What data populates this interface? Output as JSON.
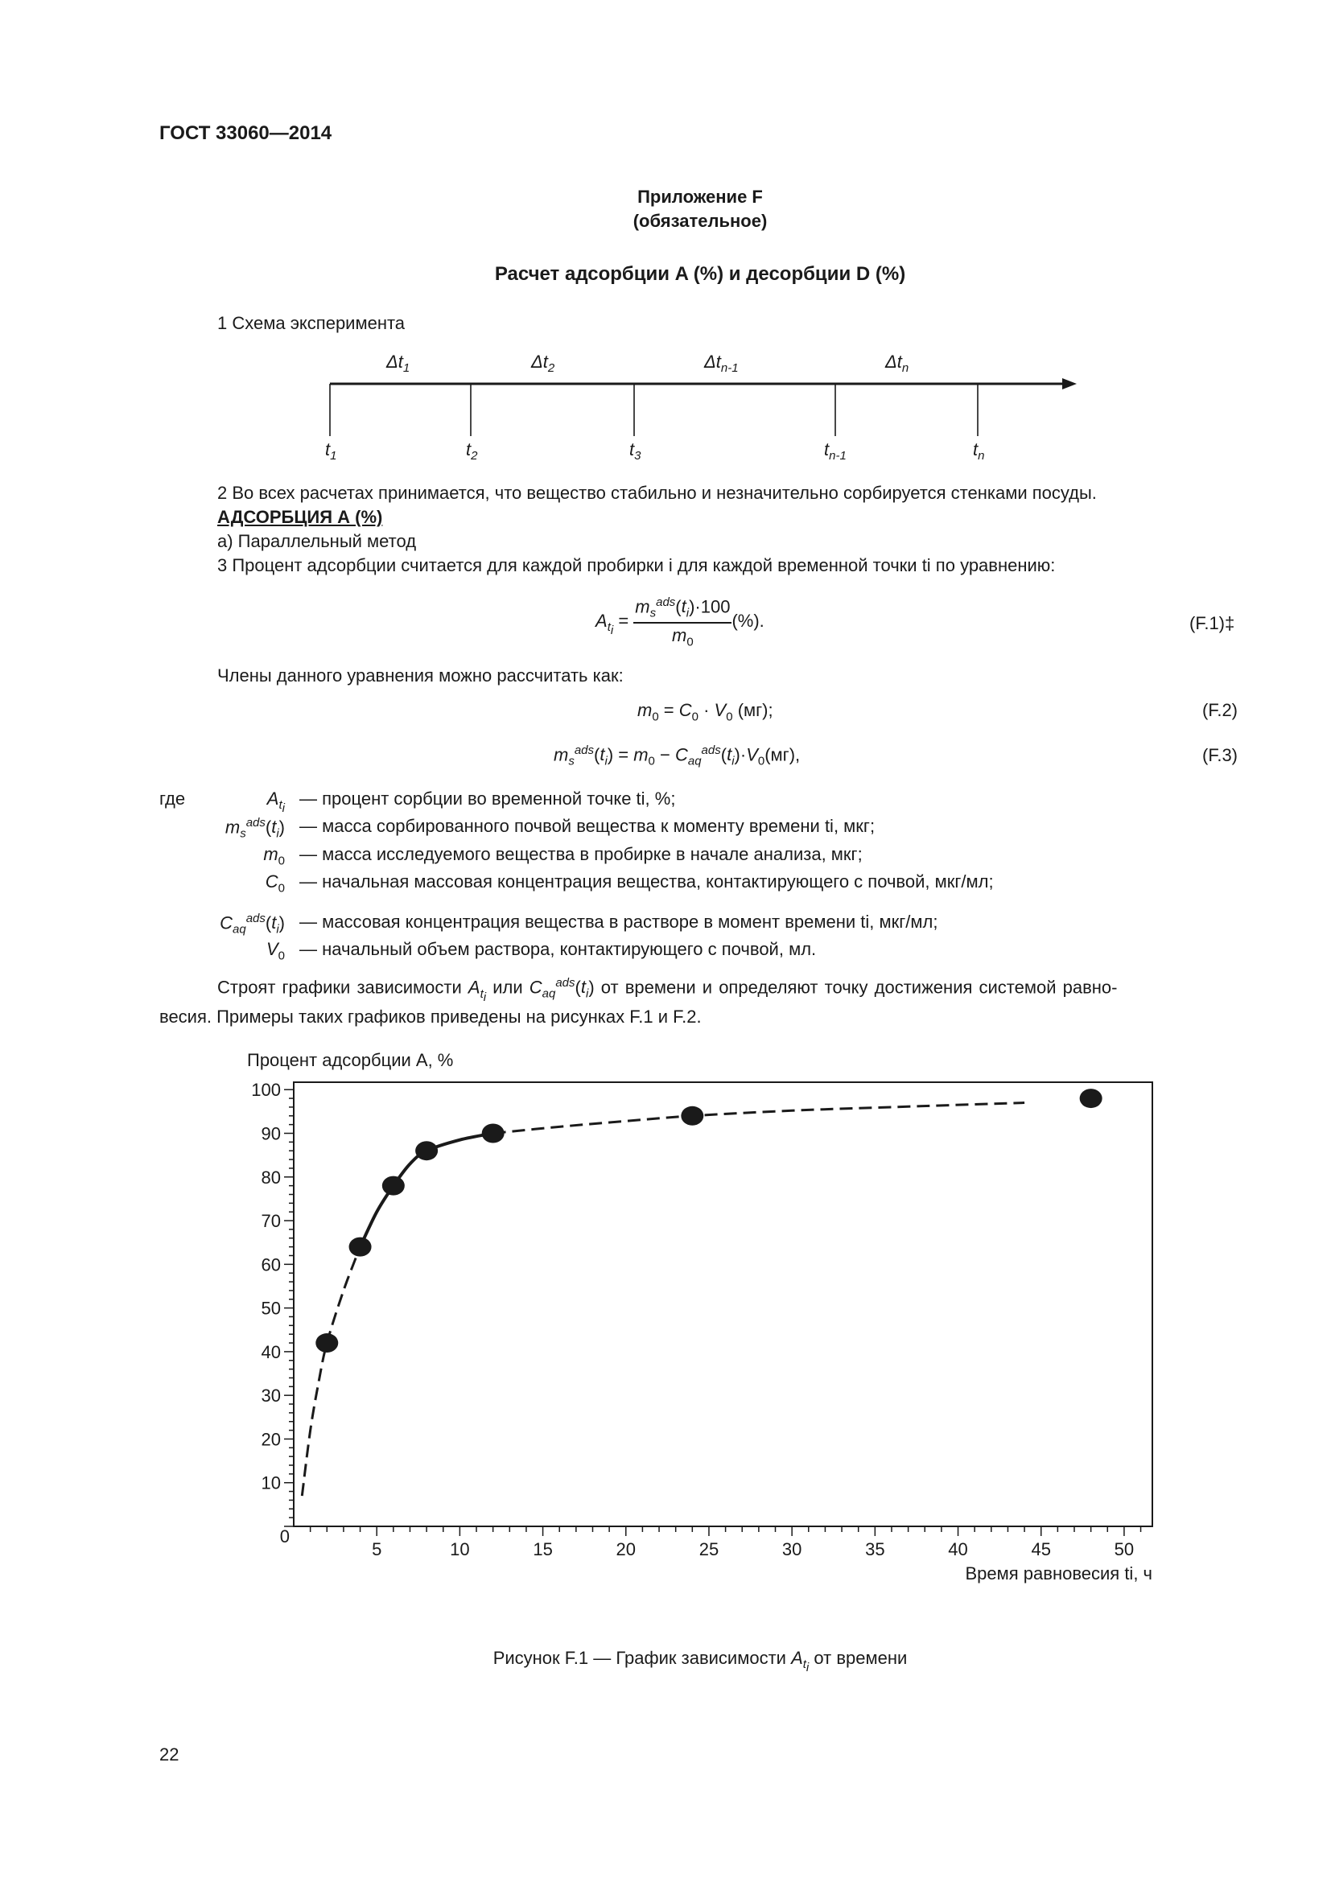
{
  "header": {
    "standard": "ГОСТ 33060—2014"
  },
  "appendix": {
    "label": "Приложение F",
    "status": "(обязательное)"
  },
  "title": "Расчет адсорбции A (%) и десорбции D (%)",
  "section1": {
    "heading": "1 Схема эксперимента",
    "intervals": [
      "Δt1",
      "Δt2",
      "Δtn-1",
      "Δtn"
    ],
    "points": [
      "t1",
      "t2",
      "t3",
      "tn-1",
      "tn"
    ]
  },
  "section2": "2 Во всех расчетах принимается, что вещество стабильно и незначительно сорбируется стенками посуды.",
  "adsorption_heading": "АДСОРБЦИЯ А (%)",
  "method_a": "а) Параллельный метод",
  "section3": "3 Процент адсорбции считается для каждой пробирки i для каждой временной точки ti по уравнению:",
  "equations": {
    "f1_label": "(F.1)‡",
    "f2_label": "(F.2)",
    "f3_label": "(F.3)",
    "members_intro": "Члены данного уравнения можно рассчитать как:"
  },
  "where": "где",
  "definitions": [
    {
      "term": "A_ti",
      "text": "— процент сорбции во временной точке ti, %;"
    },
    {
      "term": "m_s^ads(ti)",
      "text": "— масса сорбированного почвой вещества к моменту времени ti, мкг;"
    },
    {
      "term": "m0",
      "text": "— масса исследуемого вещества в пробирке в начале анализа, мкг;"
    },
    {
      "term": "C0",
      "text": "— начальная массовая концентрация вещества, контактирующего с почвой, мкг/мл;"
    },
    {
      "term": "C_aq^ads(ti)",
      "text": "— массовая концентрация вещества в растворе в момент времени ti, мкг/мл;"
    },
    {
      "term": "V0",
      "text": "— начальный объем раствора, контактирующего с почвой, мл."
    }
  ],
  "paragraph_plots": {
    "line1_a": "Строят графики зависимости",
    "line1_b": "или",
    "line1_c": "от времени и определяют точку достижения системой равно-",
    "line2": "весия. Примеры таких графиков приведены на рисунках F.1 и F.2."
  },
  "chart_data": {
    "type": "scatter",
    "ylabel": "Процент адсорбции A, %",
    "xlabel": "Время равновесия ti, ч",
    "xlim": [
      0,
      51.7
    ],
    "ylim": [
      0,
      101.7
    ],
    "xticks": [
      5,
      10,
      15,
      20,
      25,
      30,
      35,
      40,
      45,
      50
    ],
    "yticks": [
      0,
      10,
      20,
      30,
      40,
      50,
      60,
      70,
      80,
      90,
      100
    ],
    "grid": false,
    "points": {
      "x": [
        2,
        4,
        6,
        8,
        12,
        24,
        48
      ],
      "y": [
        42,
        64,
        78,
        86,
        90,
        94,
        98
      ]
    },
    "curves": [
      {
        "style": "dashed",
        "x": [
          0.5,
          1,
          1.5,
          2,
          3,
          4
        ],
        "y": [
          7,
          22,
          33,
          42,
          54,
          64
        ]
      },
      {
        "style": "solid",
        "x": [
          4,
          5,
          6,
          7,
          8,
          10,
          12
        ],
        "y": [
          64,
          72,
          78,
          83,
          86,
          88.5,
          90
        ]
      },
      {
        "style": "dashed",
        "x": [
          12,
          16,
          20,
          24,
          30,
          36,
          44
        ],
        "y": [
          90,
          91.5,
          92.8,
          94,
          95.2,
          96,
          97
        ]
      }
    ],
    "colors": {
      "marks": "#1a1a1a"
    }
  },
  "figure_caption": {
    "before": "Рисунок F.1 — График зависимости",
    "after": "от времени"
  },
  "page_number": "22"
}
